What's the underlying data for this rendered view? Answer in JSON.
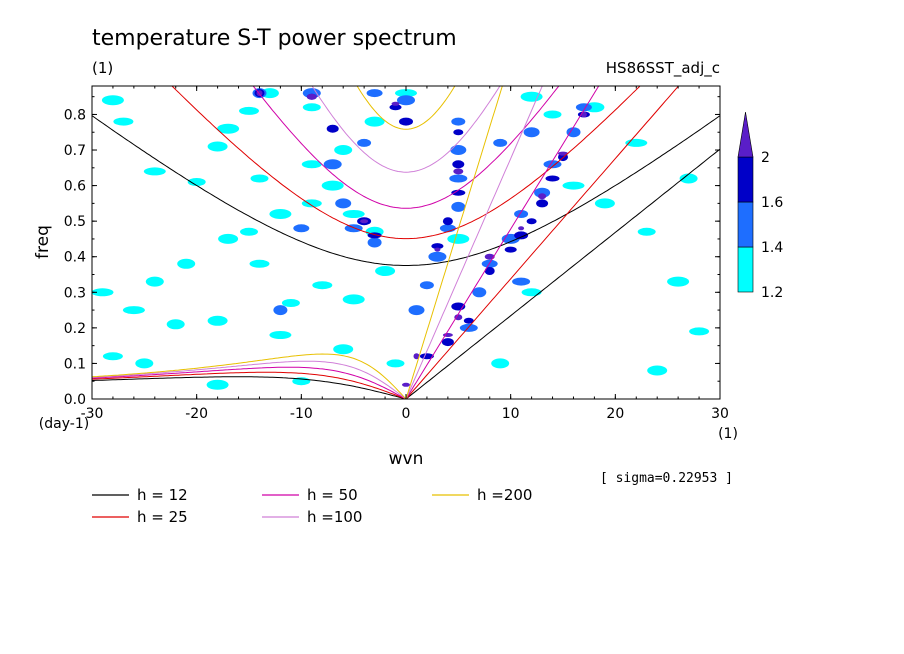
{
  "chart_data": {
    "type": "heatmap",
    "title": "temperature S-T power spectrum",
    "subtitle_left": "(1)",
    "subtitle_right": "HS86SST_adj_c",
    "xlabel": "wvn",
    "ylabel": "freq",
    "x_unit": "(1)",
    "y_unit": "(day-1)",
    "xlim": [
      -30,
      30
    ],
    "ylim": [
      0,
      0.88
    ],
    "x_ticks": [
      -30,
      -20,
      -10,
      0,
      10,
      20,
      30
    ],
    "x_tick_labels": [
      "-30",
      "-20",
      "-10",
      "0",
      "10",
      "20",
      "30"
    ],
    "y_ticks": [
      0,
      0.1,
      0.2,
      0.3,
      0.4,
      0.5,
      0.6,
      0.7,
      0.8
    ],
    "y_tick_labels": [
      "0.0",
      "0.1",
      "0.2",
      "0.3",
      "0.4",
      "0.5",
      "0.6",
      "0.7",
      "0.8"
    ],
    "grid": false,
    "annotation": "[ sigma=0.22953 ]",
    "colorbar": {
      "levels": [
        1.2,
        1.4,
        1.6,
        2
      ],
      "labels": [
        "1.2",
        "1.4",
        "1.6",
        "2"
      ],
      "colors": [
        "#00ffff",
        "#1e6eff",
        "#0000c8",
        "#5a1ec8"
      ]
    },
    "shaded_regions": [
      {
        "level": 1.2,
        "points": [
          [
            -13,
            0.86
          ],
          [
            -15,
            0.81
          ],
          [
            -17,
            0.76
          ],
          [
            -9,
            0.82
          ],
          [
            -3,
            0.78
          ],
          [
            0,
            0.86
          ],
          [
            -6,
            0.7
          ],
          [
            -9,
            0.66
          ],
          [
            -12,
            0.52
          ],
          [
            -15,
            0.47
          ],
          [
            -17,
            0.45
          ],
          [
            -5,
            0.52
          ],
          [
            -3,
            0.47
          ],
          [
            -8,
            0.32
          ],
          [
            -5,
            0.28
          ],
          [
            -11,
            0.27
          ],
          [
            -18,
            0.22
          ],
          [
            -26,
            0.25
          ],
          [
            -24,
            0.33
          ],
          [
            -27,
            0.78
          ],
          [
            -28,
            0.84
          ],
          [
            -20,
            0.61
          ],
          [
            -18,
            0.71
          ],
          [
            -24,
            0.64
          ],
          [
            -22,
            0.21
          ],
          [
            -9,
            0.55
          ],
          [
            -7,
            0.6
          ],
          [
            -14,
            0.62
          ],
          [
            -2,
            0.36
          ],
          [
            -29,
            0.3
          ],
          [
            -21,
            0.38
          ],
          [
            -14,
            0.38
          ],
          [
            12,
            0.85
          ],
          [
            14,
            0.8
          ],
          [
            18,
            0.82
          ],
          [
            22,
            0.72
          ],
          [
            27,
            0.62
          ],
          [
            28,
            0.19
          ],
          [
            26,
            0.33
          ],
          [
            23,
            0.47
          ],
          [
            19,
            0.55
          ],
          [
            16,
            0.6
          ],
          [
            9,
            0.1
          ],
          [
            12,
            0.3
          ],
          [
            5,
            0.45
          ],
          [
            -1,
            0.1
          ],
          [
            -6,
            0.14
          ],
          [
            -12,
            0.18
          ],
          [
            -25,
            0.1
          ],
          [
            -28,
            0.12
          ],
          [
            -18,
            0.04
          ],
          [
            -10,
            0.05
          ],
          [
            24,
            0.08
          ]
        ]
      },
      {
        "level": 1.4,
        "points": [
          [
            -14,
            0.86
          ],
          [
            -3,
            0.86
          ],
          [
            0,
            0.84
          ],
          [
            5,
            0.78
          ],
          [
            5,
            0.7
          ],
          [
            5,
            0.62
          ],
          [
            5,
            0.54
          ],
          [
            4,
            0.48
          ],
          [
            3,
            0.4
          ],
          [
            2,
            0.32
          ],
          [
            1,
            0.25
          ],
          [
            6,
            0.2
          ],
          [
            7,
            0.3
          ],
          [
            8,
            0.38
          ],
          [
            10,
            0.45
          ],
          [
            11,
            0.52
          ],
          [
            13,
            0.58
          ],
          [
            14,
            0.66
          ],
          [
            16,
            0.75
          ],
          [
            17,
            0.82
          ],
          [
            -9,
            0.86
          ],
          [
            -4,
            0.72
          ],
          [
            -6,
            0.55
          ],
          [
            -5,
            0.48
          ],
          [
            -3,
            0.44
          ],
          [
            -10,
            0.48
          ],
          [
            -7,
            0.66
          ],
          [
            9,
            0.72
          ],
          [
            12,
            0.75
          ],
          [
            11,
            0.33
          ],
          [
            -12,
            0.25
          ]
        ]
      },
      {
        "level": 1.6,
        "points": [
          [
            -14,
            0.86
          ],
          [
            -1,
            0.82
          ],
          [
            0,
            0.78
          ],
          [
            5,
            0.75
          ],
          [
            5,
            0.66
          ],
          [
            5,
            0.58
          ],
          [
            4,
            0.5
          ],
          [
            3,
            0.43
          ],
          [
            5,
            0.26
          ],
          [
            6,
            0.22
          ],
          [
            4,
            0.16
          ],
          [
            2,
            0.12
          ],
          [
            8,
            0.36
          ],
          [
            10,
            0.42
          ],
          [
            11,
            0.46
          ],
          [
            12,
            0.5
          ],
          [
            13,
            0.55
          ],
          [
            14,
            0.62
          ],
          [
            15,
            0.68
          ],
          [
            17,
            0.8
          ],
          [
            -4,
            0.5
          ],
          [
            -9,
            0.85
          ],
          [
            -7,
            0.76
          ],
          [
            -3,
            0.46
          ]
        ]
      },
      {
        "level": 2.0,
        "points": [
          [
            -14,
            0.86
          ],
          [
            -1,
            0.83
          ],
          [
            5,
            0.64
          ],
          [
            3,
            0.42
          ],
          [
            5,
            0.23
          ],
          [
            4,
            0.18
          ],
          [
            1,
            0.12
          ],
          [
            0,
            0.04
          ],
          [
            8,
            0.4
          ],
          [
            11,
            0.48
          ],
          [
            13,
            0.57
          ],
          [
            15,
            0.69
          ],
          [
            17,
            0.8
          ],
          [
            -4,
            0.5
          ],
          [
            -9,
            0.85
          ]
        ]
      }
    ],
    "series": [
      {
        "name": "h = 12",
        "color": "#000000",
        "h": 12
      },
      {
        "name": "h = 25",
        "color": "#e00000",
        "h": 25
      },
      {
        "name": "h = 50",
        "color": "#d000a8",
        "h": 50
      },
      {
        "name": "h =100",
        "color": "#d080d8",
        "h": 100
      },
      {
        "name": "h =200",
        "color": "#e8c000",
        "h": 200
      }
    ],
    "legend_placement": "bottom"
  }
}
